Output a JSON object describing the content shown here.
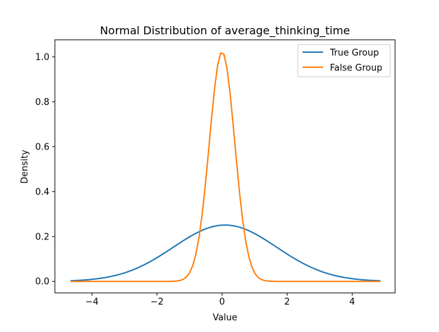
{
  "chart_data": {
    "type": "line",
    "title": "Normal Distribution of average_thinking_time",
    "xlabel": "Value",
    "ylabel": "Density",
    "xlim": [
      -5.14,
      5.32
    ],
    "ylim": [
      -0.0512,
      1.0759
    ],
    "xticks": [
      -4,
      -2,
      0,
      2,
      4
    ],
    "xtick_labels": [
      "−4",
      "−2",
      "0",
      "2",
      "4"
    ],
    "yticks": [
      0.0,
      0.2,
      0.4,
      0.6,
      0.8,
      1.0
    ],
    "ytick_labels": [
      "0.0",
      "0.2",
      "0.4",
      "0.6",
      "0.8",
      "1.0"
    ],
    "grid": false,
    "legend_position": "top-right",
    "series": [
      {
        "name": "True Group",
        "color": "#1f77b4",
        "distribution": "normal",
        "mean": 0.09,
        "std": 1.59,
        "x_range": [
          -4.66,
          4.87
        ],
        "points": 100
      },
      {
        "name": "False Group",
        "color": "#ff7f0e",
        "distribution": "normal",
        "mean": 0.0,
        "std": 0.39,
        "x_range": [
          -4.66,
          4.87
        ],
        "points": 100
      }
    ]
  }
}
